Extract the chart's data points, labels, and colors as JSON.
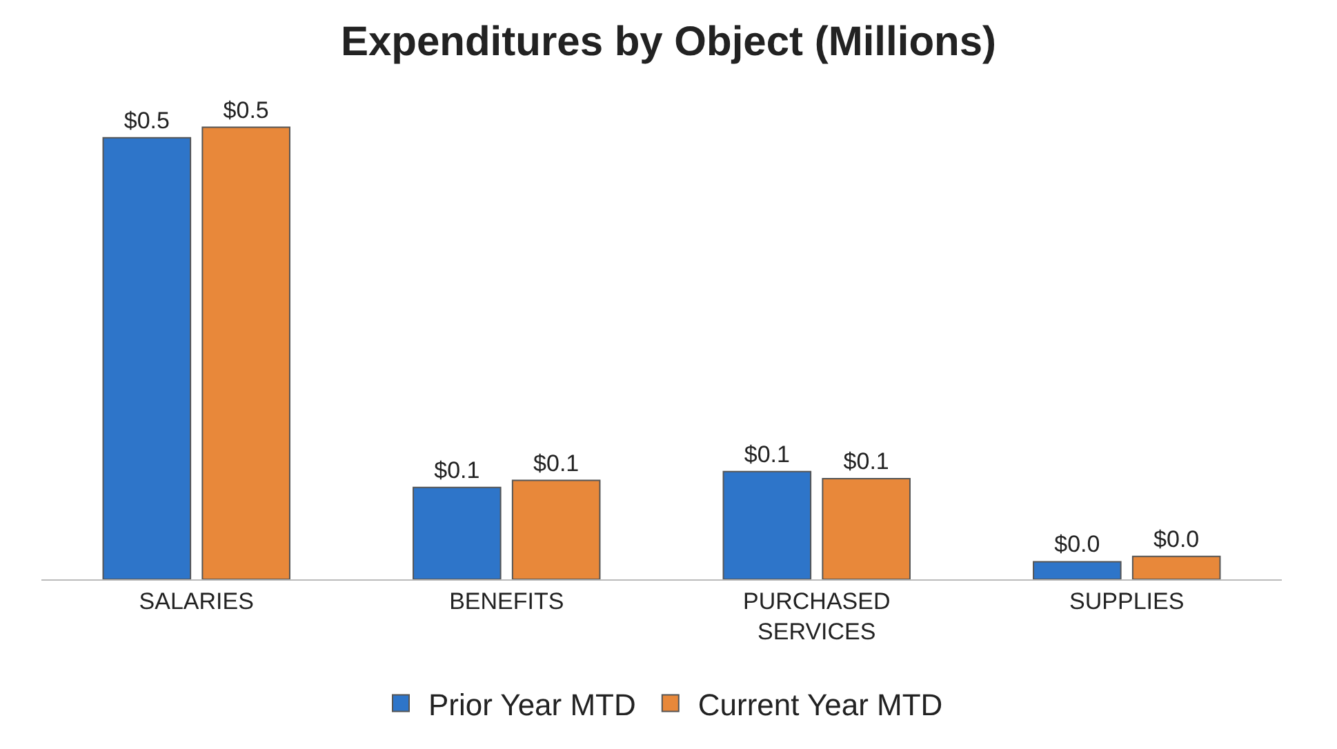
{
  "chart_data": {
    "type": "bar",
    "title": "Expenditures by Object (Millions)",
    "categories": [
      "SALARIES",
      "BENEFITS",
      "PURCHASED SERVICES",
      "SUPPLIES"
    ],
    "series": [
      {
        "name": "Prior Year MTD",
        "color": "#2e75c9",
        "values": [
          0.5,
          0.104,
          0.122,
          0.02
        ],
        "value_labels": [
          "$0.5",
          "$0.1",
          "$0.1",
          "$0.0"
        ]
      },
      {
        "name": "Current Year MTD",
        "color": "#e8883a",
        "values": [
          0.512,
          0.112,
          0.114,
          0.026
        ],
        "value_labels": [
          "$0.5",
          "$0.1",
          "$0.1",
          "$0.0"
        ]
      }
    ],
    "legend": "bottom"
  }
}
